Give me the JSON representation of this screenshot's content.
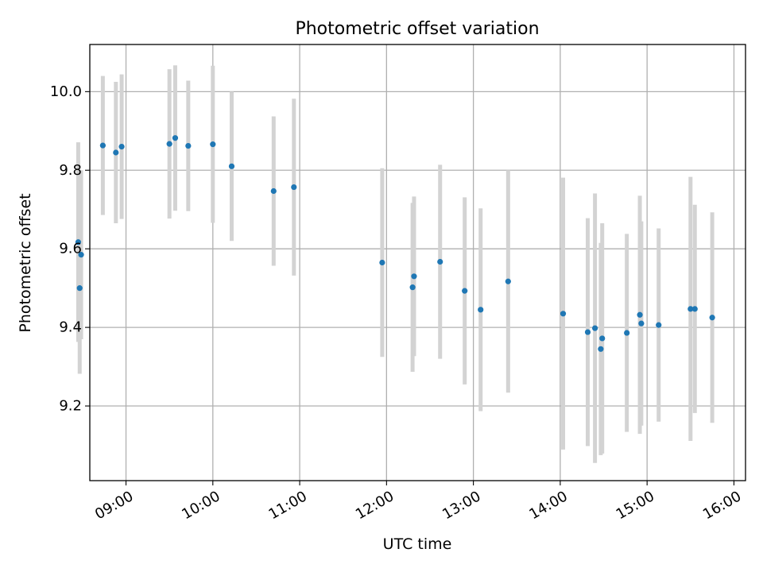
{
  "chart_data": {
    "type": "scatter",
    "title": "Photometric offset variation",
    "xlabel": "UTC time",
    "ylabel": "Photometric offset",
    "x_tick_labels": [
      "09:00",
      "10:00",
      "11:00",
      "12:00",
      "13:00",
      "14:00",
      "15:00",
      "16:00"
    ],
    "y_tick_labels": [
      "9.2",
      "9.4",
      "9.6",
      "9.8",
      "10.0"
    ],
    "xlim": [
      "08:35",
      "16:08"
    ],
    "ylim": [
      9.01,
      10.12
    ],
    "grid": true,
    "colors": {
      "point": "#1f77b4",
      "errorbar": "#d3d3d3"
    },
    "points": [
      {
        "x": "08:27",
        "y": 9.617,
        "err": 0.254
      },
      {
        "x": "08:29",
        "y": 9.585,
        "err": 0.215
      },
      {
        "x": "08:28",
        "y": 9.5,
        "err": 0.218
      },
      {
        "x": "08:44",
        "y": 9.863,
        "err": 0.177
      },
      {
        "x": "08:53",
        "y": 9.845,
        "err": 0.18
      },
      {
        "x": "08:57",
        "y": 9.86,
        "err": 0.184
      },
      {
        "x": "09:30",
        "y": 9.867,
        "err": 0.19
      },
      {
        "x": "09:34",
        "y": 9.882,
        "err": 0.185
      },
      {
        "x": "09:43",
        "y": 9.862,
        "err": 0.166
      },
      {
        "x": "10:00",
        "y": 9.866,
        "err": 0.2
      },
      {
        "x": "10:13",
        "y": 9.81,
        "err": 0.19
      },
      {
        "x": "10:42",
        "y": 9.747,
        "err": 0.19
      },
      {
        "x": "10:56",
        "y": 9.757,
        "err": 0.225
      },
      {
        "x": "11:57",
        "y": 9.565,
        "err": 0.24
      },
      {
        "x": "12:18",
        "y": 9.502,
        "err": 0.215
      },
      {
        "x": "12:19",
        "y": 9.53,
        "err": 0.203
      },
      {
        "x": "12:37",
        "y": 9.567,
        "err": 0.247
      },
      {
        "x": "12:54",
        "y": 9.493,
        "err": 0.238
      },
      {
        "x": "13:05",
        "y": 9.445,
        "err": 0.258
      },
      {
        "x": "13:24",
        "y": 9.517,
        "err": 0.283
      },
      {
        "x": "14:02",
        "y": 9.435,
        "err": 0.346
      },
      {
        "x": "14:19",
        "y": 9.388,
        "err": 0.29
      },
      {
        "x": "14:24",
        "y": 9.398,
        "err": 0.343
      },
      {
        "x": "14:28",
        "y": 9.345,
        "err": 0.27
      },
      {
        "x": "14:29",
        "y": 9.372,
        "err": 0.293
      },
      {
        "x": "14:46",
        "y": 9.386,
        "err": 0.252
      },
      {
        "x": "14:55",
        "y": 9.432,
        "err": 0.303
      },
      {
        "x": "14:56",
        "y": 9.41,
        "err": 0.26
      },
      {
        "x": "15:08",
        "y": 9.406,
        "err": 0.246
      },
      {
        "x": "15:30",
        "y": 9.447,
        "err": 0.336
      },
      {
        "x": "15:33",
        "y": 9.447,
        "err": 0.265
      },
      {
        "x": "15:45",
        "y": 9.425,
        "err": 0.268
      }
    ]
  }
}
